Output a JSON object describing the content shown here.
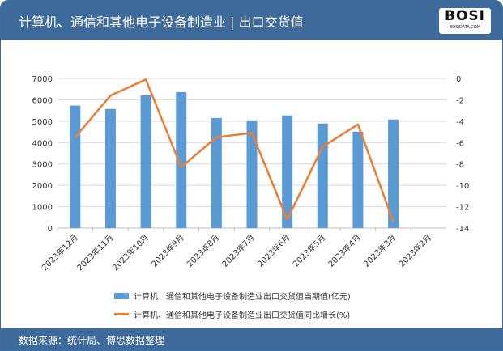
{
  "header": {
    "title": "计算机、通信和其他电子设备制造业 | 出口交货值",
    "logo_text": "BOSI",
    "logo_sub": "BOSIDATA.COM"
  },
  "footer": {
    "source": "数据来源：统计局、博思数据整理"
  },
  "chart_data": {
    "type": "bar+line",
    "categories": [
      "2023年12月",
      "2023年11月",
      "2023年10月",
      "2023年9月",
      "2023年8月",
      "2023年7月",
      "2023年6月",
      "2023年5月",
      "2023年4月",
      "2023年3月",
      "2023年2月"
    ],
    "series": [
      {
        "name": "计算机、通信和其他电子设备制造业出口交货值当期值(亿元)",
        "type": "bar",
        "axis": "left",
        "color": "#5b9bd5",
        "values": [
          5730,
          5570,
          6210,
          6360,
          5150,
          5040,
          5270,
          4890,
          4510,
          5080,
          null
        ]
      },
      {
        "name": "计算机、通信和其他电子设备制造业出口交货值同比增长(%)",
        "type": "line",
        "axis": "right",
        "color": "#ed7d31",
        "values": [
          -5.5,
          -1.6,
          -0.1,
          -8.3,
          -5.5,
          -5.1,
          -13.2,
          -6.4,
          -4.3,
          -13.4,
          null
        ]
      }
    ],
    "left_axis": {
      "ylim": [
        0,
        7000
      ],
      "ticks": [
        "0",
        "1000",
        "2000",
        "3000",
        "4000",
        "5000",
        "6000",
        "7000"
      ]
    },
    "right_axis": {
      "ylim": [
        -14,
        0
      ],
      "ticks": [
        "0",
        "-2",
        "-4",
        "-6",
        "-8",
        "-10",
        "-12",
        "-14"
      ]
    },
    "grid": true,
    "legend": "bottom"
  }
}
